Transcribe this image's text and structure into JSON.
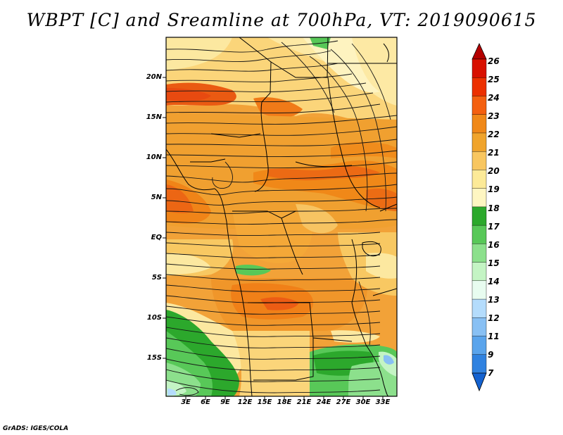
{
  "title": "WBPT [C] and Sreamline at 700hPa, VT: 2019090615",
  "credit": "GrADS: IGES/COLA",
  "map": {
    "variable": "Wet-bulb potential temperature",
    "units": "C",
    "level_hpa": 700,
    "lon_range": [
      0,
      35
    ],
    "lat_range": [
      -20,
      24
    ],
    "lat_labels": [
      "20N",
      "15N",
      "10N",
      "5N",
      "EQ",
      "5S",
      "10S",
      "15S"
    ],
    "lon_labels": [
      "3E",
      "6E",
      "9E",
      "12E",
      "15E",
      "18E",
      "21E",
      "24E",
      "27E",
      "30E",
      "33E"
    ]
  },
  "colorbar": {
    "labels": [
      "26",
      "25",
      "24",
      "23",
      "22",
      "21",
      "20",
      "19",
      "18",
      "17",
      "16",
      "15",
      "14",
      "13",
      "12",
      "11",
      "9",
      "7"
    ],
    "colors": [
      "#b40000",
      "#d81000",
      "#ec3000",
      "#f46010",
      "#f08818",
      "#f0a42c",
      "#f8c660",
      "#fcea98",
      "#fef6c2",
      "#2ca82c",
      "#58c858",
      "#8ce08c",
      "#c4f4c4",
      "#e8fcf0",
      "#b4dcfc",
      "#88c0f4",
      "#5aa4ec",
      "#3082e0",
      "#1462d0"
    ]
  }
}
